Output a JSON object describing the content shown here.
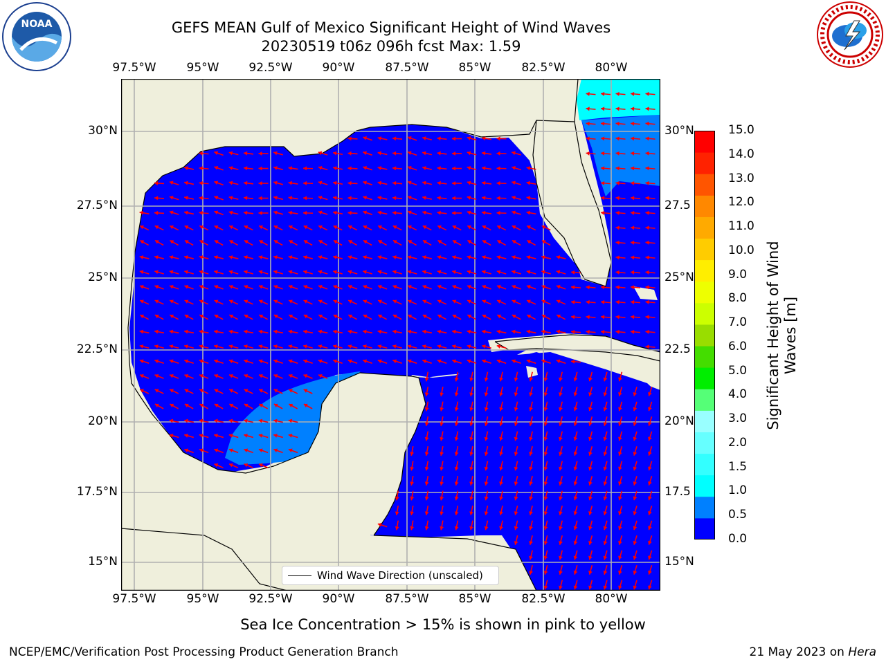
{
  "title_line1": "GEFS MEAN Gulf of Mexico Significant Height of Wind Waves",
  "title_line2": "20230519 t06z 096h fcst   Max: 1.59",
  "lon_labels": [
    "97.5°W",
    "95°W",
    "92.5°W",
    "90°W",
    "87.5°W",
    "85°W",
    "82.5°W",
    "80°W"
  ],
  "lat_labels": [
    "30°N",
    "27.5°N",
    "25°N",
    "22.5°N",
    "20°N",
    "17.5°N",
    "15°N"
  ],
  "lat_labels_right": [
    "30°N",
    "27.5",
    "25°N",
    "22.5",
    "20°N",
    "17.5",
    "15°N"
  ],
  "legend_label": "Wind Wave Direction (unscaled)",
  "colorbar": {
    "label_line1": "Significant Height of Wind",
    "label_line2": "Waves [m]",
    "ticks": [
      "0.0",
      "0.5",
      "1.0",
      "1.5",
      "2.0",
      "3.0",
      "4.0",
      "5.0",
      "6.0",
      "7.0",
      "8.0",
      "9.0",
      "10.0",
      "11.0",
      "12.0",
      "13.0",
      "14.0",
      "15.0"
    ],
    "colors": [
      "#0000ff",
      "#0080ff",
      "#00ffff",
      "#33ffff",
      "#66ffff",
      "#99ffff",
      "#55ff77",
      "#00ee00",
      "#44dd00",
      "#99dd00",
      "#ccff00",
      "#eeff00",
      "#ffee00",
      "#ffcc00",
      "#ffaa00",
      "#ff8800",
      "#ff5500",
      "#ff2200",
      "#ff0000"
    ]
  },
  "subtitle": "Sea Ice Concentration > 15% is shown in pink to yellow",
  "footer_left": "NCEP/EMC/Verification Post Processing Product Generation Branch",
  "footer_right_date": "21 May 2023 on ",
  "footer_right_machine": "Hera",
  "logos": {
    "noaa_text": "NOAA",
    "noaa_ring": "NATIONAL OCEANIC AND ATMOSPHERIC ADMINISTRATION · U.S. DEPARTMENT OF COMMERCE",
    "nws_ring": "NATIONAL WEATHER SERVICE"
  },
  "colors": {
    "land": "#efefdc",
    "ocean_low": "#0000ff",
    "ocean_mid": "#0080ff",
    "ocean_high": "#00ffff",
    "arrow": "#ff0000",
    "grid": "#b0b0b0"
  }
}
